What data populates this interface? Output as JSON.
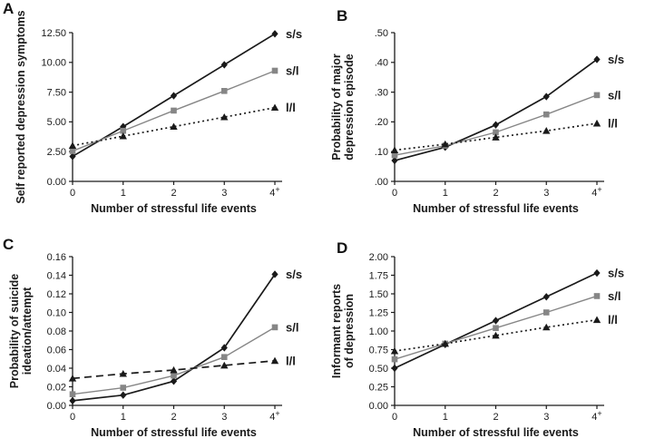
{
  "figure": {
    "background": "#ffffff",
    "axis_color": "#1a1a1a",
    "colors": {
      "black": "#1a1a1a",
      "gray": "#868686"
    },
    "genotype_labels": [
      "s/s",
      "s/l",
      "l/l"
    ]
  },
  "chart_data": [
    {
      "type": "line",
      "panel": "A",
      "title": "",
      "xlabel": "Number of stressful life events",
      "ylabel": "Self reported depression symptoms",
      "ylabel_lines": [
        "Self reported depression symptoms"
      ],
      "categories": [
        "0",
        "1",
        "2",
        "3",
        "4+"
      ],
      "ylim": [
        0,
        12.5
      ],
      "yticks": [
        "0.00",
        "2.50",
        "5.00",
        "7.50",
        "10.00",
        "12.50"
      ],
      "grid": false,
      "legend_position": "right-end-of-lines",
      "series": [
        {
          "name": "s/s",
          "color": "#1a1a1a",
          "marker": "diamond",
          "line": "solid",
          "values": [
            2.1,
            4.6,
            7.2,
            9.8,
            12.4
          ]
        },
        {
          "name": "s/l",
          "color": "#868686",
          "marker": "square",
          "line": "solid",
          "values": [
            2.55,
            4.25,
            5.95,
            7.6,
            9.3
          ]
        },
        {
          "name": "l/l",
          "color": "#1a1a1a",
          "marker": "triangle",
          "line": "dotted",
          "values": [
            3.0,
            3.8,
            4.6,
            5.4,
            6.2
          ]
        }
      ]
    },
    {
      "type": "line",
      "panel": "B",
      "title": "",
      "xlabel": "Number of stressful life events",
      "ylabel": "Probability of major depression episode",
      "ylabel_lines": [
        "Probability of major",
        "depression episode"
      ],
      "categories": [
        "0",
        "1",
        "2",
        "3",
        "4+"
      ],
      "ylim": [
        0,
        0.5
      ],
      "yticks": [
        ".00",
        ".10",
        ".20",
        ".30",
        ".40",
        ".50"
      ],
      "grid": false,
      "legend_position": "right-end-of-lines",
      "series": [
        {
          "name": "s/s",
          "color": "#1a1a1a",
          "marker": "diamond",
          "line": "solid",
          "values": [
            0.07,
            0.115,
            0.19,
            0.285,
            0.41
          ]
        },
        {
          "name": "s/l",
          "color": "#868686",
          "marker": "square",
          "line": "solid",
          "values": [
            0.088,
            0.12,
            0.165,
            0.225,
            0.29
          ]
        },
        {
          "name": "l/l",
          "color": "#1a1a1a",
          "marker": "triangle",
          "line": "dotted",
          "values": [
            0.105,
            0.125,
            0.148,
            0.17,
            0.195
          ]
        }
      ]
    },
    {
      "type": "line",
      "panel": "C",
      "title": "",
      "xlabel": "Number of stressful life events",
      "ylabel": "Probability of suicide ideation/attempt",
      "ylabel_lines": [
        "Probability of suicide",
        "ideation/attempt"
      ],
      "categories": [
        "0",
        "1",
        "2",
        "3",
        "4+"
      ],
      "ylim": [
        0,
        0.16
      ],
      "yticks": [
        "0.00",
        "0.02",
        "0.04",
        "0.06",
        "0.08",
        "0.10",
        "0.12",
        "0.14",
        "0.16"
      ],
      "grid": false,
      "legend_position": "right-end-of-lines",
      "series": [
        {
          "name": "s/s",
          "color": "#1a1a1a",
          "marker": "diamond",
          "line": "solid",
          "values": [
            0.005,
            0.011,
            0.026,
            0.062,
            0.141
          ]
        },
        {
          "name": "s/l",
          "color": "#868686",
          "marker": "square",
          "line": "solid",
          "values": [
            0.012,
            0.019,
            0.032,
            0.052,
            0.084
          ]
        },
        {
          "name": "l/l",
          "color": "#1a1a1a",
          "marker": "triangle",
          "line": "dashed",
          "values": [
            0.029,
            0.034,
            0.038,
            0.043,
            0.048
          ]
        }
      ]
    },
    {
      "type": "line",
      "panel": "D",
      "title": "",
      "xlabel": "Number of stressful life events",
      "ylabel": "Informant reports of depression",
      "ylabel_lines": [
        "Informant reports",
        "of depression"
      ],
      "categories": [
        "0",
        "1",
        "2",
        "3",
        "4+"
      ],
      "ylim": [
        0,
        2.0
      ],
      "yticks": [
        "0.00",
        "0.25",
        "0.50",
        "0.75",
        "1.00",
        "1.25",
        "1.50",
        "1.75",
        "2.00"
      ],
      "grid": false,
      "legend_position": "right-end-of-lines",
      "series": [
        {
          "name": "s/s",
          "color": "#1a1a1a",
          "marker": "diamond",
          "line": "solid",
          "values": [
            0.5,
            0.82,
            1.14,
            1.46,
            1.78
          ]
        },
        {
          "name": "s/l",
          "color": "#868686",
          "marker": "square",
          "line": "solid",
          "values": [
            0.62,
            0.83,
            1.04,
            1.25,
            1.47
          ]
        },
        {
          "name": "l/l",
          "color": "#1a1a1a",
          "marker": "triangle",
          "line": "dotted",
          "values": [
            0.73,
            0.83,
            0.94,
            1.05,
            1.15
          ]
        }
      ]
    }
  ]
}
